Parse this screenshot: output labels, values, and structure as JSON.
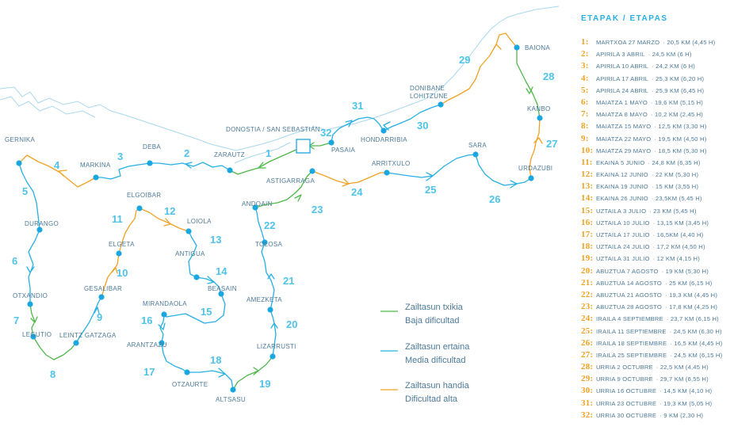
{
  "stages_title": "ETAPAK / ETAPAS",
  "legend": [
    {
      "line1": "Zailtasun txikia",
      "line2": "Baja dificultad",
      "color": "#4db848"
    },
    {
      "line1": "Zailtasun ertaina",
      "line2": "Media dificultad",
      "color": "#27b0e3"
    },
    {
      "line1": "Zailtasun handia",
      "line2": "Dificultad alta",
      "color": "#f0a225"
    }
  ],
  "colors": {
    "low": "#4db848",
    "medium": "#27b0e3",
    "high": "#f0a225",
    "dot": "#1aa7e0",
    "text": "#4c7a99",
    "coast": "#a9d8ef"
  },
  "places": {
    "baiona": "BAIONA",
    "donibane": "DONIBANE",
    "lohitzune": "LOHITZUNE",
    "hondarribia": "HONDARRIBIA",
    "kanbo": "KANBO",
    "donostia": "DONOSTIA / SAN SEBASTIÁN",
    "pasaia": "PASAIA",
    "sara": "SARA",
    "urdazubi": "URDAZUBI",
    "gernika": "GERNIKA",
    "deba": "DEBA",
    "zarautz": "ZARAUTZ",
    "markina": "MARKINA",
    "astigarraga": "ASTIGARRAGA",
    "arritxulo": "ARRITXULO",
    "elgoibar": "ELGOIBAR",
    "andoain": "ANDOAIN",
    "loiola": "LOIOLA",
    "durango": "DURANGO",
    "elgeta": "ELGETA",
    "antigua": "ANTIGUA",
    "tolosa": "TOLOSA",
    "gesalibar": "GESALIBAR",
    "beasain": "BEASAIN",
    "otxandio": "OTXANDIO",
    "mirandaola": "MIRANDAOLA",
    "amezketa": "AMEZKETA",
    "legutio": "LEGUTIO",
    "leintz": "LEINTZ GATZAGA",
    "arantzazu": "ARANTZAZU",
    "lizarrusti": "LIZARRUSTI",
    "otzaurte": "OTZAURTE",
    "altsasu": "ALTSASU"
  },
  "stage_numbers": [
    "1",
    "2",
    "3",
    "4",
    "5",
    "6",
    "7",
    "8",
    "9",
    "10",
    "11",
    "12",
    "13",
    "14",
    "15",
    "16",
    "17",
    "18",
    "19",
    "20",
    "21",
    "22",
    "23",
    "24",
    "25",
    "26",
    "27",
    "28",
    "29",
    "30",
    "31",
    "32"
  ],
  "stages": [
    {
      "num": "1:",
      "date": "MARTXOA 27 MARZO",
      "dist": "· 20,5 KM (4,45 H)"
    },
    {
      "num": "2:",
      "date": "APIRILA 3 ABRIL",
      "dist": "· 24,5 KM (6 H)"
    },
    {
      "num": "3:",
      "date": "APIRILA 10 ABRIL",
      "dist": "· 24,2 KM (6 H)"
    },
    {
      "num": "4:",
      "date": "APIRILA 17 ABRIL",
      "dist": "· 25,3 KM (6,20 H)"
    },
    {
      "num": "5:",
      "date": "APIRILA  24 ABRIL",
      "dist": "· 25,9 KM (6,45 H)"
    },
    {
      "num": "6:",
      "date": "MAIATZA 1 MAYO",
      "dist": "· 19,6 KM (5,15 H)"
    },
    {
      "num": "7:",
      "date": "MAIATZA 8 MAYO",
      "dist": "· 10,2 KM (2,45 H)"
    },
    {
      "num": "8:",
      "date": "MAIATZA 15 MAYO",
      "dist": "· 12,5 KM (3,30 H)"
    },
    {
      "num": "9:",
      "date": "MAIATZA 22 MAYO",
      "dist": "· 19,5 KM (4,50 H)"
    },
    {
      "num": "10:",
      "date": "MAIATZA 29 MAYO",
      "dist": "· 18,5 KM (5,30 H)"
    },
    {
      "num": "11:",
      "date": "EKAINA 5 JUNIO",
      "dist": "· 24,8 KM (6,35 H)"
    },
    {
      "num": "12:",
      "date": "EKAINA 12 JUNIO",
      "dist": "· 22 KM (5,30 H)"
    },
    {
      "num": "13:",
      "date": "EKAINA 19 JUNIO",
      "dist": "· 15 KM (3,55 H)"
    },
    {
      "num": "14:",
      "date": "EKAINA 26 JUNIO",
      "dist": "· 23,5KM (5,45 H)"
    },
    {
      "num": "15:",
      "date": "UZTAILA 3 JULIO",
      "dist": "· 23 KM (5,45 H)"
    },
    {
      "num": "16:",
      "date": "UZTAILA 10 JULIO",
      "dist": "· 13,15 KM (3,45 H)"
    },
    {
      "num": "17:",
      "date": "UZTAILA 17 JULIO",
      "dist": "· 16,5KM (4,40 H)"
    },
    {
      "num": "18:",
      "date": "UZTAILA 24 JULIO",
      "dist": "· 17,2 KM (4,50 H)"
    },
    {
      "num": "19:",
      "date": "UZTAILA 31 JULIO",
      "dist": "· 12 KM (4,15 H)"
    },
    {
      "num": "20:",
      "date": "ABUZTUA 7 AGOSTO",
      "dist": "· 19 KM (5,30 H)"
    },
    {
      "num": "21:",
      "date": "ABUZTUA 14 AGOSTO",
      "dist": "· 25 KM (6,15 H)"
    },
    {
      "num": "22:",
      "date": "ABUZTUA 21 AGOSTO",
      "dist": "· 19,3 KM (4,45 H)"
    },
    {
      "num": "23:",
      "date": "ABUZTUA 28 AGOSTO",
      "dist": "· 17,8 KM (4,25 H)"
    },
    {
      "num": "24:",
      "date": "IRAILA 4 SEPTIEMBRE",
      "dist": "· 23,7 KM (6,15 H)"
    },
    {
      "num": "25:",
      "date": "IRAILA 11 SEPTIEMBRE",
      "dist": "· 24,5 KM (6,30 H)"
    },
    {
      "num": "26:",
      "date": "IRAILA 18 SEPTIEMBRE",
      "dist": "· 16,5 KM (4,45 H)"
    },
    {
      "num": "27:",
      "date": "IRAILA 25 SEPTIEMBRE",
      "dist": "· 24,5 KM (6,15 H)"
    },
    {
      "num": "28:",
      "date": "URRIA 2 OCTUBRE",
      "dist": "· 22,5 KM (4,45 H)"
    },
    {
      "num": "29:",
      "date": "URRIA 9 OCTUBRE",
      "dist": "· 29,7 KM (6,55 H)"
    },
    {
      "num": "30:",
      "date": "URRIA 16 OCTUBRE",
      "dist": "· 14,5 KM (4,10 H)"
    },
    {
      "num": "31:",
      "date": "URRIA 23 OCTUBRE",
      "dist": "· 19,3 KM (5,05 H)"
    },
    {
      "num": "32:",
      "date": "URRIA 30 OCTUBRE",
      "dist": "· 9 KM (2,30 H)"
    }
  ]
}
